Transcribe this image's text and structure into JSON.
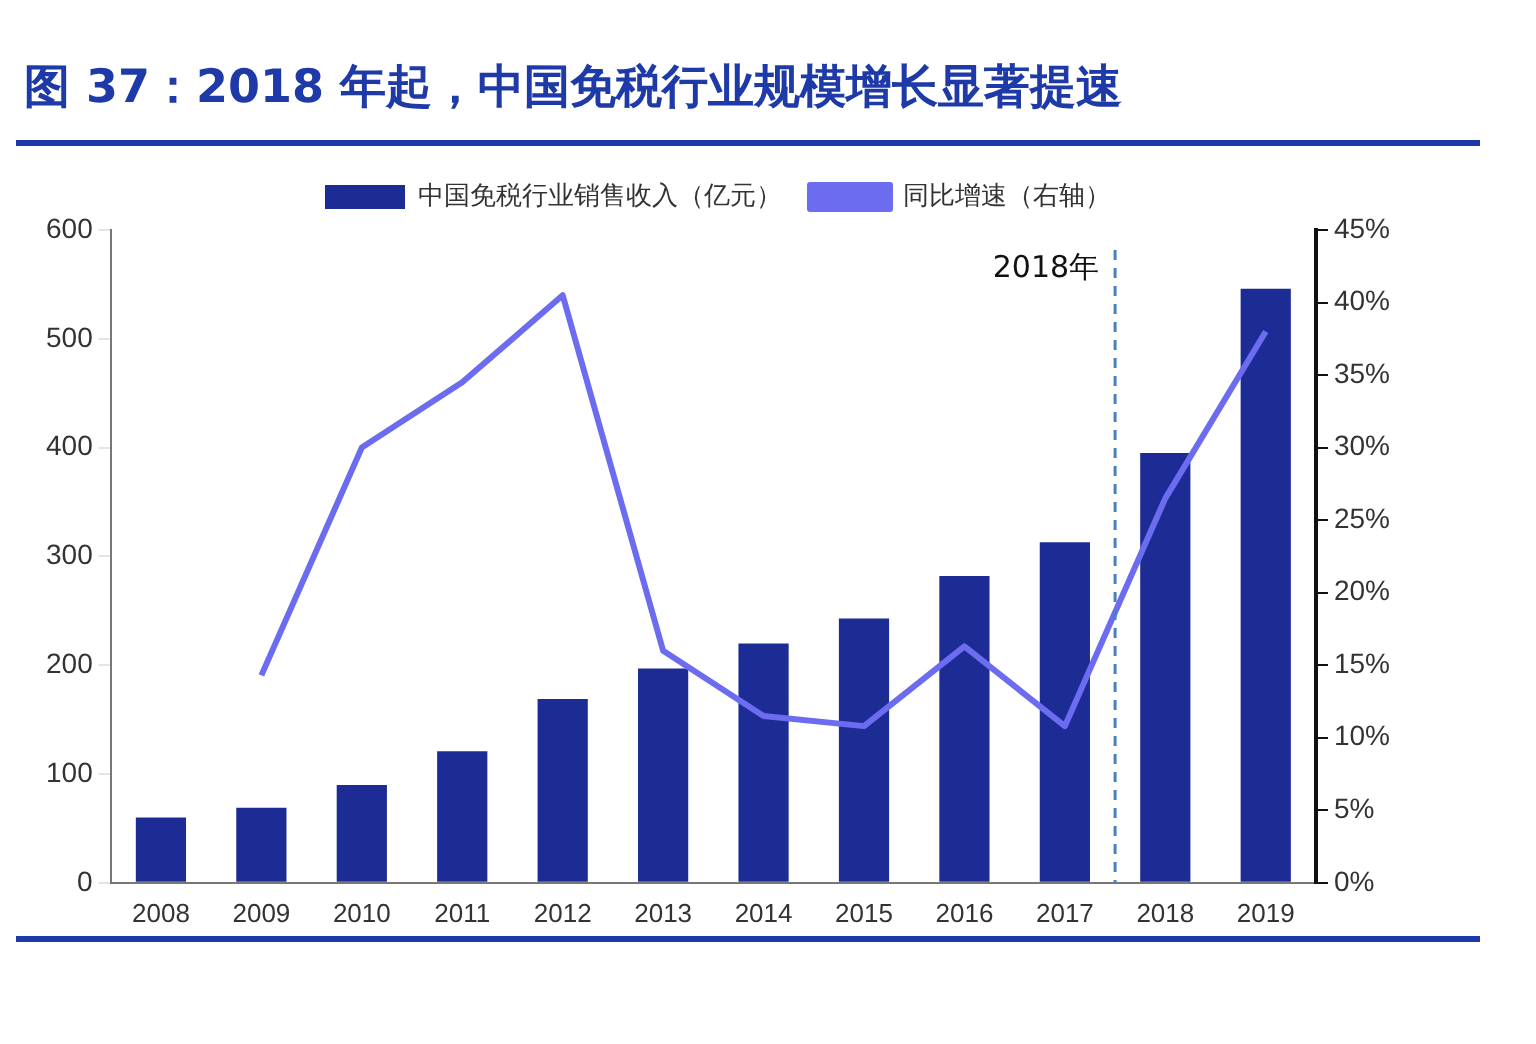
{
  "chart_data": {
    "type": "bar",
    "title": "图 37：2018 年起，中国免税行业规模增长显著提速",
    "categories": [
      "2008",
      "2009",
      "2010",
      "2011",
      "2012",
      "2013",
      "2014",
      "2015",
      "2016",
      "2017",
      "2018",
      "2019"
    ],
    "series": [
      {
        "name": "中国免税行业销售收入（亿元）",
        "color": "#1c2c94",
        "values": [
          60,
          69,
          90,
          121,
          169,
          197,
          220,
          243,
          282,
          313,
          395,
          546
        ]
      },
      {
        "name": "同比增速（右轴）",
        "type": "line",
        "axis": "y2",
        "color": "#6b6cf0",
        "values": [
          null,
          14.3,
          30,
          34.5,
          40.5,
          16,
          11.5,
          10.8,
          16.3,
          10.8,
          26.5,
          38
        ]
      }
    ],
    "ylim": [
      0,
      600
    ],
    "yticks": [
      0,
      100,
      200,
      300,
      400,
      500,
      600
    ],
    "y2lim": [
      0,
      45
    ],
    "y2ticks": [
      {
        "value": 0,
        "label": "0%"
      },
      {
        "value": 5,
        "label": "5%"
      },
      {
        "value": 10,
        "label": "10%"
      },
      {
        "value": 15,
        "label": "15%"
      },
      {
        "value": 20,
        "label": "20%"
      },
      {
        "value": 25,
        "label": "25%"
      },
      {
        "value": 30,
        "label": "30%"
      },
      {
        "value": 35,
        "label": "35%"
      },
      {
        "value": 40,
        "label": "40%"
      },
      {
        "value": 45,
        "label": "45%"
      }
    ],
    "ref_lines": [
      {
        "axis": "x",
        "value": "2018",
        "label": "2018年",
        "color": "#4a7fc0",
        "line_style": "dashed"
      }
    ],
    "grid": false,
    "legend": "top",
    "marker": "none"
  }
}
